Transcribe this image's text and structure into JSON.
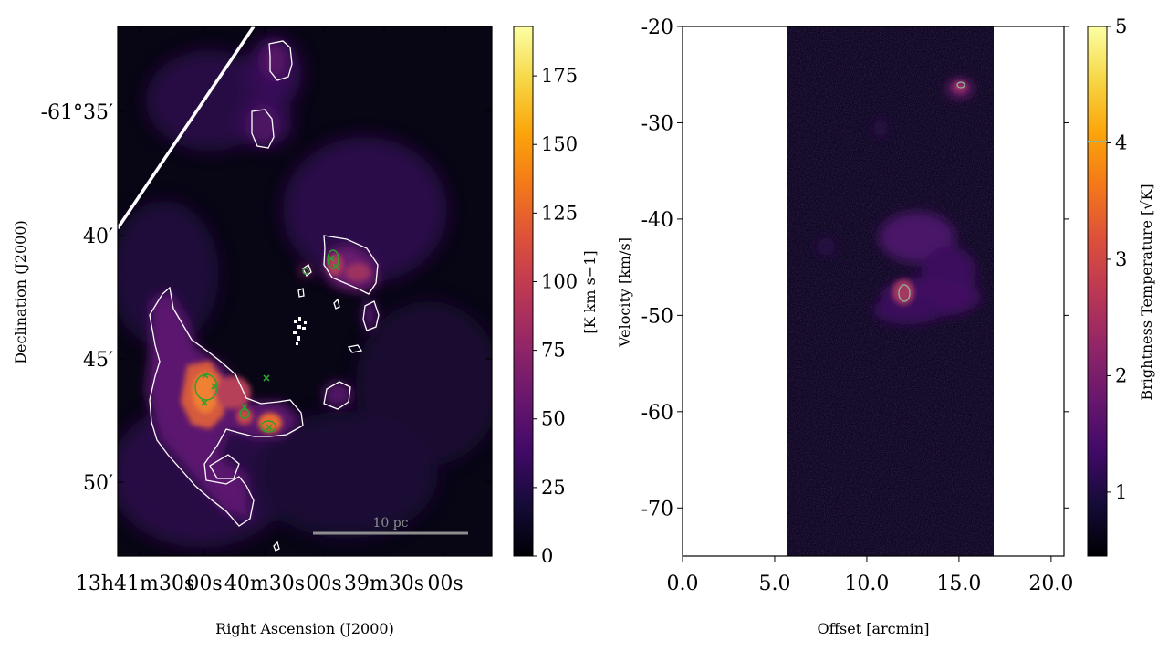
{
  "chart_data": [
    {
      "type": "heatmap",
      "title": "",
      "xlabel": "Right Ascension (J2000)",
      "ylabel": "Declination (J2000)",
      "x_ticks": [
        "13h41m30s",
        "00s",
        "40m30s",
        "00s",
        "39m30s",
        "00s"
      ],
      "y_ticks": [
        "-61°35′",
        "40′",
        "45′",
        "50′"
      ],
      "colorbar": {
        "label": "[K km s−1]",
        "range": [
          0,
          193
        ],
        "ticks": [
          0,
          25,
          50,
          75,
          100,
          125,
          150,
          175
        ],
        "colormap": "inferno"
      },
      "scalebar_label": "10 pc",
      "contour_color": "#ffffff",
      "marker_color": "#2ca02c",
      "markers": [
        {
          "ra": "13h41m01s",
          "dec": -61.75
        },
        {
          "ra": "13h40m57s",
          "dec": -61.753
        },
        {
          "ra": "13h41m01s",
          "dec": -61.77
        },
        {
          "ra": "13h40m45s",
          "dec": -61.78
        },
        {
          "ra": "13h40m28s",
          "dec": -61.787
        },
        {
          "ra": "13h40m30s",
          "dec": -61.75
        },
        {
          "ra": "13h40m05s",
          "dec": -61.65
        },
        {
          "ra": "13h40m03s",
          "dec": -61.655
        }
      ]
    },
    {
      "type": "heatmap",
      "title": "",
      "xlabel": "Offset [arcmin]",
      "ylabel": "Velocity [km/s]",
      "xlim": [
        0,
        20.7
      ],
      "ylim": [
        -75,
        -20
      ],
      "x_ticks": [
        0.0,
        5.0,
        10.0,
        15.0,
        20.0
      ],
      "y_ticks": [
        -20,
        -30,
        -40,
        -50,
        -60,
        -70
      ],
      "data_x_range": [
        5.7,
        16.8
      ],
      "colorbar": {
        "label": "Brightness Temperature [√K]",
        "range": [
          0.45,
          5
        ],
        "ticks": [
          1,
          2,
          3,
          4,
          5
        ],
        "colormap": "inferno",
        "contour_level": 4
      },
      "contour_color": "#8fb996"
    }
  ]
}
